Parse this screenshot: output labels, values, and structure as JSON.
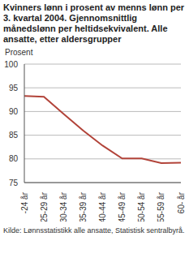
{
  "chart_data": {
    "type": "line",
    "title": "Kvinners lønn i prosent av menns lønn per 3. kvartal 2004. Gjennomsnittlig månedslønn per heltidsekvivalent.  Alle ansatte, etter aldersgrupper",
    "y_label": "Prosent",
    "annotations": [
      "Kilde: Lønnsstatistikk alle ansatte, Statistisk sentralbyrå."
    ],
    "categories": [
      "-24 år",
      "25-29 år",
      "30-34 år",
      "35-39 år",
      "40-44 år",
      "45-49 år",
      "50-54 år",
      "55-59 år",
      "60- år"
    ],
    "values": [
      93.3,
      93.1,
      89.5,
      86.0,
      82.8,
      80.1,
      80.1,
      79.1,
      79.2
    ],
    "color": "#b2443a",
    "ylim": [
      75,
      100
    ],
    "yticks": [
      75,
      80,
      85,
      90,
      95,
      100
    ],
    "grid": true
  }
}
